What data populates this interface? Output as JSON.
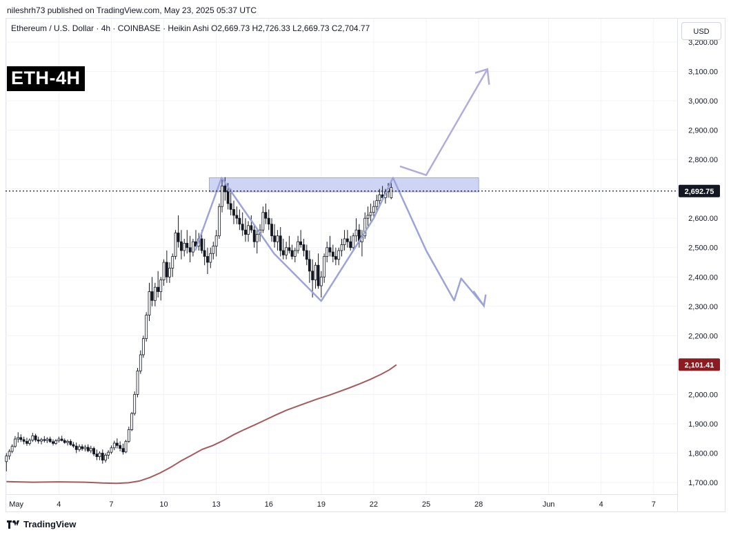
{
  "header": {
    "published": "nileshrh73 published on TradingView.com, May 23, 2025 05:37 UTC",
    "symbol_line": "Ethereum / U.S. Dollar · 4h · COINBASE · Heikin Ashi  O2,669.73  H2,726.33  L2,669.73  C2,704.77",
    "badge": "ETH-4H",
    "currency_button": "USD"
  },
  "footer": {
    "brand": "TradingView"
  },
  "colors": {
    "up_candle": "#ffffff",
    "down_candle": "#131722",
    "moving_average": "#a55a5a",
    "pattern_lines": "#9ba3d8",
    "resistance_zone": "#c5cdf2",
    "ma_label_bg": "#8b1c22",
    "price_label_bg": "#131722"
  },
  "chart_data": {
    "type": "candlestick",
    "title": "",
    "y_ticks": [
      "3,200.00",
      "3,100.00",
      "3,000.00",
      "2,900.00",
      "2,800.00",
      "2,700.00",
      "2,600.00",
      "2,500.00",
      "2,400.00",
      "2,300.00",
      "2,200.00",
      "2,100.00",
      "2,000.00",
      "1,900.00",
      "1,800.00",
      "1,700.00"
    ],
    "y_tick_values": [
      3200,
      3100,
      3000,
      2900,
      2800,
      2700,
      2600,
      2500,
      2400,
      2300,
      2200,
      2100,
      2000,
      1900,
      1800,
      1700
    ],
    "ylim": [
      1660,
      3280
    ],
    "x_ticks": [
      "May",
      "4",
      "7",
      "10",
      "13",
      "16",
      "19",
      "22",
      "25",
      "28",
      "Jun",
      "4",
      "7"
    ],
    "x_tick_days": [
      1,
      4,
      7,
      10,
      13,
      16,
      19,
      22,
      25,
      28,
      32,
      35,
      38
    ],
    "xlim_days": [
      0.95,
      39.35
    ],
    "current_price": "2,692.75",
    "current_price_value": 2692.75,
    "ma_value_label": "2,101.41",
    "ma_value": 2101.41,
    "resistance_zone": {
      "low": 2690,
      "high": 2738,
      "from_day": 12.6,
      "to_day": 28.0
    },
    "moving_average": [
      [
        1.0,
        1703
      ],
      [
        2.5,
        1701
      ],
      [
        4.0,
        1702
      ],
      [
        5.5,
        1701
      ],
      [
        6.5,
        1698
      ],
      [
        7.3,
        1697
      ],
      [
        8.0,
        1699
      ],
      [
        8.6,
        1705
      ],
      [
        9.2,
        1717
      ],
      [
        9.8,
        1733
      ],
      [
        10.4,
        1752
      ],
      [
        11.0,
        1774
      ],
      [
        11.6,
        1793
      ],
      [
        12.2,
        1813
      ],
      [
        12.8,
        1826
      ],
      [
        13.4,
        1843
      ],
      [
        14.0,
        1863
      ],
      [
        14.6,
        1880
      ],
      [
        15.2,
        1896
      ],
      [
        15.8,
        1913
      ],
      [
        16.4,
        1930
      ],
      [
        17.0,
        1946
      ],
      [
        17.6,
        1959
      ],
      [
        18.2,
        1972
      ],
      [
        18.8,
        1985
      ],
      [
        19.4,
        1996
      ],
      [
        20.0,
        2009
      ],
      [
        20.6,
        2022
      ],
      [
        21.2,
        2036
      ],
      [
        21.8,
        2051
      ],
      [
        22.4,
        2068
      ],
      [
        22.9,
        2084
      ],
      [
        23.3,
        2101
      ]
    ],
    "candles": [
      [
        1.0,
        1771,
        1800,
        1738,
        1790
      ],
      [
        1.17,
        1790,
        1813,
        1778,
        1806
      ],
      [
        1.33,
        1806,
        1830,
        1800,
        1823
      ],
      [
        1.5,
        1823,
        1858,
        1818,
        1848
      ],
      [
        1.67,
        1848,
        1871,
        1836,
        1853
      ],
      [
        1.83,
        1853,
        1864,
        1838,
        1846
      ],
      [
        2.0,
        1846,
        1856,
        1830,
        1840
      ],
      [
        2.17,
        1840,
        1852,
        1825,
        1833
      ],
      [
        2.33,
        1833,
        1850,
        1826,
        1844
      ],
      [
        2.5,
        1844,
        1869,
        1838,
        1859
      ],
      [
        2.67,
        1859,
        1866,
        1838,
        1845
      ],
      [
        2.83,
        1845,
        1856,
        1832,
        1841
      ],
      [
        3.0,
        1841,
        1852,
        1830,
        1846
      ],
      [
        3.17,
        1846,
        1858,
        1836,
        1843
      ],
      [
        3.33,
        1843,
        1854,
        1834,
        1848
      ],
      [
        3.5,
        1848,
        1856,
        1835,
        1839
      ],
      [
        3.67,
        1839,
        1847,
        1826,
        1833
      ],
      [
        3.83,
        1833,
        1848,
        1828,
        1842
      ],
      [
        4.0,
        1842,
        1856,
        1836,
        1848
      ],
      [
        4.17,
        1848,
        1859,
        1840,
        1843
      ],
      [
        4.33,
        1843,
        1850,
        1832,
        1836
      ],
      [
        4.5,
        1836,
        1846,
        1826,
        1840
      ],
      [
        4.67,
        1840,
        1847,
        1825,
        1829
      ],
      [
        4.83,
        1829,
        1838,
        1818,
        1824
      ],
      [
        5.0,
        1824,
        1836,
        1800,
        1812
      ],
      [
        5.17,
        1812,
        1830,
        1805,
        1822
      ],
      [
        5.33,
        1822,
        1830,
        1808,
        1815
      ],
      [
        5.5,
        1815,
        1828,
        1806,
        1820
      ],
      [
        5.67,
        1820,
        1830,
        1803,
        1808
      ],
      [
        5.83,
        1808,
        1825,
        1800,
        1816
      ],
      [
        6.0,
        1816,
        1822,
        1790,
        1797
      ],
      [
        6.17,
        1797,
        1812,
        1776,
        1788
      ],
      [
        6.33,
        1788,
        1806,
        1776,
        1800
      ],
      [
        6.5,
        1800,
        1812,
        1764,
        1776
      ],
      [
        6.67,
        1776,
        1800,
        1768,
        1793
      ],
      [
        6.83,
        1793,
        1810,
        1780,
        1803
      ],
      [
        7.0,
        1803,
        1826,
        1797,
        1818
      ],
      [
        7.17,
        1818,
        1842,
        1810,
        1834
      ],
      [
        7.33,
        1834,
        1850,
        1816,
        1826
      ],
      [
        7.5,
        1826,
        1840,
        1806,
        1816
      ],
      [
        7.67,
        1816,
        1832,
        1795,
        1804
      ],
      [
        7.83,
        1804,
        1845,
        1800,
        1840
      ],
      [
        8.0,
        1840,
        1890,
        1835,
        1880
      ],
      [
        8.17,
        1880,
        1940,
        1875,
        1935
      ],
      [
        8.33,
        1935,
        2010,
        1928,
        2000
      ],
      [
        8.5,
        2000,
        2090,
        1990,
        2080
      ],
      [
        8.67,
        2080,
        2150,
        2070,
        2135
      ],
      [
        8.83,
        2135,
        2200,
        2125,
        2190
      ],
      [
        9.0,
        2190,
        2280,
        2180,
        2270
      ],
      [
        9.17,
        2270,
        2380,
        2250,
        2350
      ],
      [
        9.33,
        2350,
        2400,
        2300,
        2320
      ],
      [
        9.5,
        2320,
        2380,
        2300,
        2365
      ],
      [
        9.67,
        2365,
        2420,
        2330,
        2350
      ],
      [
        9.83,
        2350,
        2400,
        2320,
        2390
      ],
      [
        10.0,
        2390,
        2460,
        2370,
        2450
      ],
      [
        10.17,
        2450,
        2490,
        2380,
        2400
      ],
      [
        10.33,
        2400,
        2450,
        2380,
        2430
      ],
      [
        10.5,
        2430,
        2480,
        2400,
        2470
      ],
      [
        10.67,
        2470,
        2560,
        2460,
        2550
      ],
      [
        10.83,
        2550,
        2610,
        2500,
        2520
      ],
      [
        11.0,
        2520,
        2560,
        2460,
        2490
      ],
      [
        11.17,
        2490,
        2530,
        2470,
        2515
      ],
      [
        11.33,
        2515,
        2560,
        2480,
        2500
      ],
      [
        11.5,
        2500,
        2540,
        2450,
        2485
      ],
      [
        11.67,
        2485,
        2530,
        2470,
        2520
      ],
      [
        11.83,
        2520,
        2560,
        2490,
        2505
      ],
      [
        12.0,
        2505,
        2550,
        2490,
        2530
      ],
      [
        12.17,
        2530,
        2560,
        2480,
        2490
      ],
      [
        12.33,
        2490,
        2530,
        2440,
        2470
      ],
      [
        12.5,
        2470,
        2500,
        2410,
        2450
      ],
      [
        12.67,
        2450,
        2500,
        2430,
        2480
      ],
      [
        12.83,
        2480,
        2520,
        2460,
        2505
      ],
      [
        13.0,
        2505,
        2560,
        2470,
        2540
      ],
      [
        13.17,
        2540,
        2650,
        2530,
        2640
      ],
      [
        13.33,
        2640,
        2735,
        2620,
        2710
      ],
      [
        13.5,
        2710,
        2740,
        2660,
        2690
      ],
      [
        13.67,
        2690,
        2720,
        2630,
        2650
      ],
      [
        13.83,
        2650,
        2700,
        2610,
        2630
      ],
      [
        14.0,
        2630,
        2660,
        2580,
        2610
      ],
      [
        14.17,
        2610,
        2640,
        2580,
        2600
      ],
      [
        14.33,
        2600,
        2630,
        2560,
        2580
      ],
      [
        14.5,
        2580,
        2620,
        2540,
        2560
      ],
      [
        14.67,
        2560,
        2600,
        2520,
        2545
      ],
      [
        14.83,
        2545,
        2590,
        2520,
        2575
      ],
      [
        15.0,
        2575,
        2610,
        2550,
        2560
      ],
      [
        15.17,
        2560,
        2580,
        2500,
        2520
      ],
      [
        15.33,
        2520,
        2560,
        2480,
        2545
      ],
      [
        15.5,
        2545,
        2580,
        2520,
        2560
      ],
      [
        15.67,
        2560,
        2640,
        2550,
        2620
      ],
      [
        15.83,
        2620,
        2650,
        2580,
        2600
      ],
      [
        16.0,
        2600,
        2630,
        2560,
        2580
      ],
      [
        16.17,
        2580,
        2600,
        2520,
        2540
      ],
      [
        16.33,
        2540,
        2580,
        2500,
        2520
      ],
      [
        16.5,
        2520,
        2560,
        2490,
        2540
      ],
      [
        16.67,
        2540,
        2570,
        2470,
        2490
      ],
      [
        16.83,
        2490,
        2530,
        2460,
        2475
      ],
      [
        17.0,
        2475,
        2520,
        2460,
        2500
      ],
      [
        17.17,
        2500,
        2540,
        2480,
        2490
      ],
      [
        17.33,
        2490,
        2510,
        2460,
        2470
      ],
      [
        17.5,
        2470,
        2500,
        2450,
        2490
      ],
      [
        17.67,
        2490,
        2540,
        2480,
        2520
      ],
      [
        17.83,
        2520,
        2560,
        2500,
        2510
      ],
      [
        18.0,
        2510,
        2530,
        2470,
        2490
      ],
      [
        18.17,
        2490,
        2510,
        2440,
        2460
      ],
      [
        18.33,
        2460,
        2490,
        2380,
        2420
      ],
      [
        18.5,
        2420,
        2460,
        2330,
        2390
      ],
      [
        18.67,
        2390,
        2450,
        2360,
        2440
      ],
      [
        18.83,
        2440,
        2480,
        2360,
        2370
      ],
      [
        19.0,
        2370,
        2420,
        2330,
        2400
      ],
      [
        19.17,
        2400,
        2480,
        2380,
        2470
      ],
      [
        19.33,
        2470,
        2520,
        2450,
        2500
      ],
      [
        19.5,
        2500,
        2540,
        2470,
        2485
      ],
      [
        19.67,
        2485,
        2510,
        2450,
        2470
      ],
      [
        19.83,
        2470,
        2500,
        2440,
        2460
      ],
      [
        20.0,
        2460,
        2500,
        2440,
        2490
      ],
      [
        20.17,
        2490,
        2530,
        2470,
        2510
      ],
      [
        20.33,
        2510,
        2560,
        2490,
        2530
      ],
      [
        20.5,
        2530,
        2560,
        2500,
        2520
      ],
      [
        20.67,
        2520,
        2540,
        2490,
        2500
      ],
      [
        20.83,
        2500,
        2550,
        2490,
        2540
      ],
      [
        21.0,
        2540,
        2600,
        2520,
        2560
      ],
      [
        21.17,
        2560,
        2580,
        2500,
        2520
      ],
      [
        21.33,
        2520,
        2560,
        2470,
        2540
      ],
      [
        21.5,
        2540,
        2620,
        2530,
        2600
      ],
      [
        21.67,
        2600,
        2640,
        2570,
        2610
      ],
      [
        21.83,
        2610,
        2650,
        2590,
        2620
      ],
      [
        22.0,
        2620,
        2660,
        2600,
        2640
      ],
      [
        22.17,
        2640,
        2680,
        2620,
        2660
      ],
      [
        22.33,
        2660,
        2700,
        2640,
        2680
      ],
      [
        22.5,
        2680,
        2710,
        2660,
        2670
      ],
      [
        22.67,
        2670,
        2700,
        2650,
        2690
      ],
      [
        22.83,
        2690,
        2720,
        2670,
        2700
      ],
      [
        23.0,
        2670,
        2725,
        2665,
        2705
      ]
    ]
  }
}
